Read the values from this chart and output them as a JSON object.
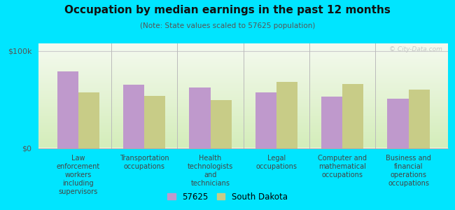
{
  "title": "Occupation by median earnings in the past 12 months",
  "subtitle": "(Note: State values scaled to 57625 population)",
  "categories": [
    "Law\nenforcement\nworkers\nincluding\nsupervisors",
    "Transportation\noccupations",
    "Health\ntechnologists\nand\ntechnicians",
    "Legal\noccupations",
    "Computer and\nmathematical\noccupations",
    "Business and\nfinancial\noperations\noccupations"
  ],
  "values_57625": [
    79000,
    65000,
    62000,
    57000,
    53000,
    51000
  ],
  "values_sd": [
    57000,
    54000,
    49000,
    68000,
    66000,
    60000
  ],
  "color_57625": "#bf99cc",
  "color_sd": "#c8cc87",
  "legend_labels": [
    "57625",
    "South Dakota"
  ],
  "yticks": [
    0,
    100000
  ],
  "ytick_labels": [
    "$0",
    "$100k"
  ],
  "ylim": [
    0,
    108000
  ],
  "outer_background": "#00e5ff",
  "watermark": "© City-Data.com",
  "grad_top": "#f5faf0",
  "grad_bottom": "#d4edba"
}
